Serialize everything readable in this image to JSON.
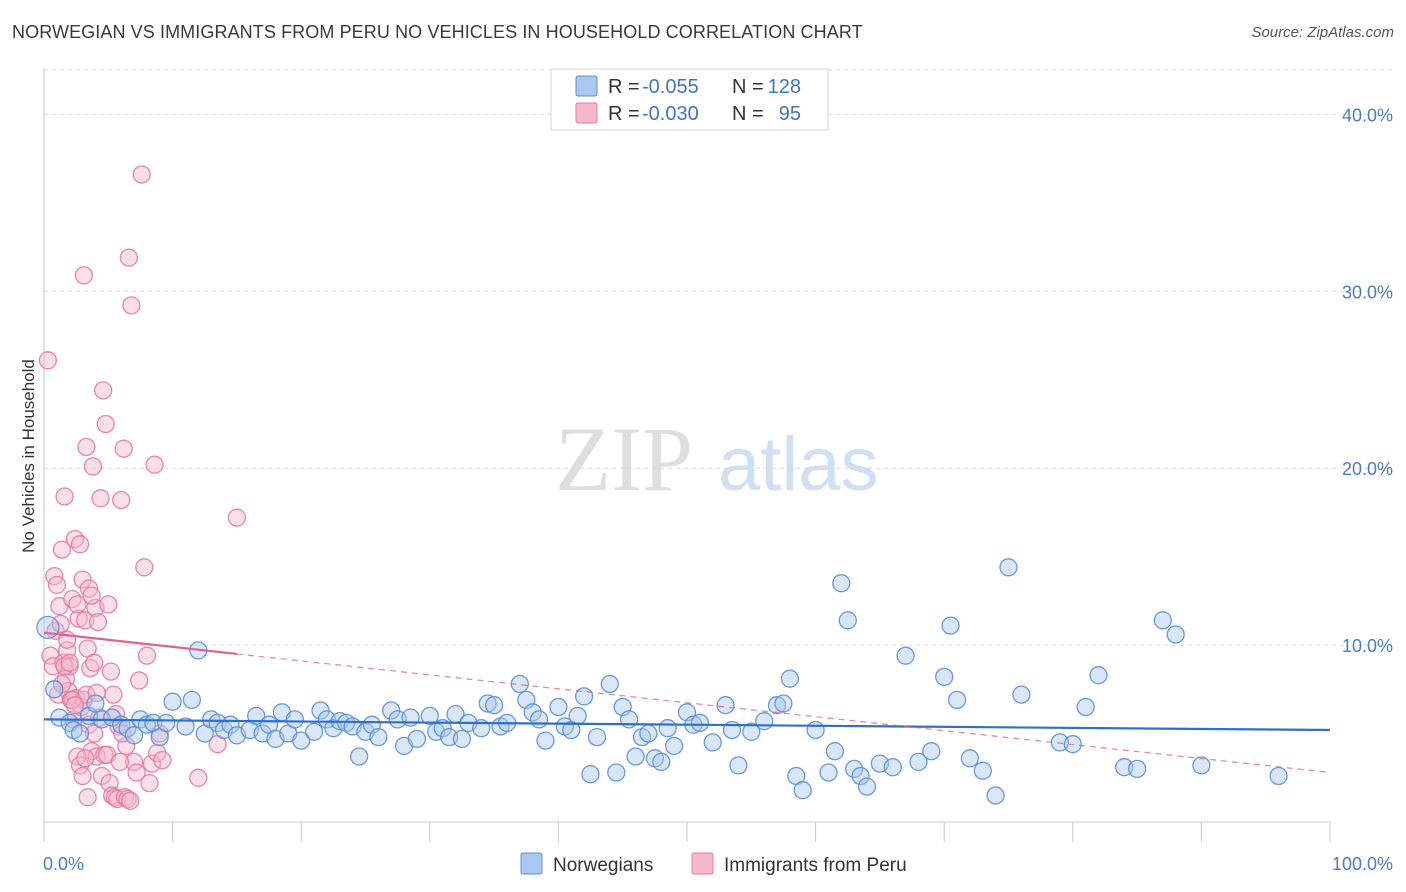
{
  "header": {
    "title": "NORWEGIAN VS IMMIGRANTS FROM PERU NO VEHICLES IN HOUSEHOLD CORRELATION CHART",
    "source": "Source: ZipAtlas.com"
  },
  "watermark": {
    "zip": "ZIP",
    "atlas": "atlas"
  },
  "colors": {
    "blue_fill": "#a9c8f0",
    "blue_stroke": "#5b8fd6",
    "blue_line": "#2f6fcf",
    "pink_fill": "#f5b8cc",
    "pink_stroke": "#e8799e",
    "pink_line": "#e0608e",
    "grid": "#d9d9d9",
    "axis_text": "#4a7cc4"
  },
  "legend_box": {
    "rows": [
      {
        "r_label": "R =",
        "r_value": "-0.055",
        "n_label": "N =",
        "n_value": "128"
      },
      {
        "r_label": "R =",
        "r_value": "-0.030",
        "n_label": "N =",
        "n_value": "95"
      }
    ]
  },
  "chart_data": {
    "type": "scatter",
    "title": "NORWEGIAN VS IMMIGRANTS FROM PERU NO VEHICLES IN HOUSEHOLD CORRELATION CHART",
    "xlabel": "",
    "ylabel": "No Vehicles in Household",
    "xlim": [
      0,
      100
    ],
    "ylim": [
      0,
      42
    ],
    "x_tick_labels": [
      "0.0%",
      "100.0%"
    ],
    "y_ticks": [
      10,
      20,
      30,
      40
    ],
    "y_tick_labels": [
      "10.0%",
      "20.0%",
      "30.0%",
      "40.0%"
    ],
    "grid": true,
    "legend_position": "bottom-center",
    "series": [
      {
        "name": "Norwegians",
        "R": -0.055,
        "N": 128,
        "trend": {
          "x": [
            0,
            100
          ],
          "y": [
            5.8,
            5.2
          ],
          "dashed_extension": false
        },
        "points": [
          [
            0.3,
            11.0
          ],
          [
            0.8,
            7.5
          ],
          [
            1.2,
            5.9
          ],
          [
            2.0,
            5.6
          ],
          [
            2.3,
            5.2
          ],
          [
            2.8,
            5.0
          ],
          [
            3.5,
            6.0
          ],
          [
            4.0,
            6.7
          ],
          [
            4.5,
            5.8
          ],
          [
            5.3,
            5.9
          ],
          [
            6.0,
            5.5
          ],
          [
            6.5,
            5.3
          ],
          [
            7.0,
            4.9
          ],
          [
            7.5,
            5.8
          ],
          [
            8.0,
            5.5
          ],
          [
            8.5,
            5.6
          ],
          [
            9.0,
            4.8
          ],
          [
            9.5,
            5.6
          ],
          [
            10.0,
            6.8
          ],
          [
            11.0,
            5.4
          ],
          [
            11.5,
            6.9
          ],
          [
            12.0,
            9.7
          ],
          [
            12.5,
            5.0
          ],
          [
            13.0,
            5.8
          ],
          [
            13.5,
            5.6
          ],
          [
            14.0,
            5.2
          ],
          [
            14.5,
            5.5
          ],
          [
            15.0,
            4.9
          ],
          [
            16.0,
            5.2
          ],
          [
            16.5,
            6.0
          ],
          [
            17.0,
            5.0
          ],
          [
            17.5,
            5.5
          ],
          [
            18.0,
            4.7
          ],
          [
            18.5,
            6.2
          ],
          [
            19.0,
            5.0
          ],
          [
            19.5,
            5.8
          ],
          [
            20.0,
            4.6
          ],
          [
            21.0,
            5.1
          ],
          [
            21.5,
            6.3
          ],
          [
            22.0,
            5.8
          ],
          [
            22.5,
            5.3
          ],
          [
            23.0,
            5.7
          ],
          [
            23.5,
            5.6
          ],
          [
            24.0,
            5.4
          ],
          [
            24.5,
            3.7
          ],
          [
            25.0,
            5.1
          ],
          [
            25.5,
            5.5
          ],
          [
            26.0,
            4.8
          ],
          [
            27.0,
            6.3
          ],
          [
            27.5,
            5.8
          ],
          [
            28.0,
            4.3
          ],
          [
            28.5,
            5.9
          ],
          [
            29.0,
            4.7
          ],
          [
            30.0,
            6.0
          ],
          [
            30.5,
            5.1
          ],
          [
            31.0,
            5.3
          ],
          [
            31.5,
            4.8
          ],
          [
            32.0,
            6.1
          ],
          [
            32.5,
            4.7
          ],
          [
            33.0,
            5.6
          ],
          [
            34.0,
            5.3
          ],
          [
            34.5,
            6.7
          ],
          [
            35.0,
            6.6
          ],
          [
            35.5,
            5.4
          ],
          [
            36.0,
            5.6
          ],
          [
            37.0,
            7.8
          ],
          [
            37.5,
            6.9
          ],
          [
            38.0,
            6.2
          ],
          [
            38.5,
            5.8
          ],
          [
            39.0,
            4.6
          ],
          [
            40.0,
            6.5
          ],
          [
            40.5,
            5.4
          ],
          [
            41.0,
            5.2
          ],
          [
            41.5,
            6.0
          ],
          [
            42.0,
            7.1
          ],
          [
            42.5,
            2.7
          ],
          [
            43.0,
            4.8
          ],
          [
            44.0,
            7.8
          ],
          [
            44.5,
            2.8
          ],
          [
            45.0,
            6.5
          ],
          [
            45.5,
            5.8
          ],
          [
            46.0,
            3.7
          ],
          [
            46.5,
            4.8
          ],
          [
            47.0,
            5.0
          ],
          [
            47.5,
            3.6
          ],
          [
            48.0,
            3.4
          ],
          [
            48.5,
            5.3
          ],
          [
            49.0,
            4.3
          ],
          [
            50.0,
            6.2
          ],
          [
            50.5,
            5.5
          ],
          [
            51.0,
            5.6
          ],
          [
            52.0,
            4.5
          ],
          [
            53.0,
            6.6
          ],
          [
            53.5,
            5.2
          ],
          [
            54.0,
            3.2
          ],
          [
            55.0,
            5.1
          ],
          [
            56.0,
            5.7
          ],
          [
            57.0,
            6.6
          ],
          [
            57.5,
            6.7
          ],
          [
            58.0,
            8.1
          ],
          [
            58.5,
            2.6
          ],
          [
            59.0,
            1.8
          ],
          [
            60.0,
            5.2
          ],
          [
            61.0,
            2.8
          ],
          [
            61.5,
            4.0
          ],
          [
            62.0,
            13.5
          ],
          [
            62.5,
            11.4
          ],
          [
            63.0,
            3.0
          ],
          [
            63.5,
            2.6
          ],
          [
            64.0,
            2.0
          ],
          [
            65.0,
            3.3
          ],
          [
            66.0,
            3.1
          ],
          [
            67.0,
            9.4
          ],
          [
            68.0,
            3.4
          ],
          [
            69.0,
            4.0
          ],
          [
            70.0,
            8.2
          ],
          [
            70.5,
            11.1
          ],
          [
            71.0,
            6.9
          ],
          [
            72.0,
            3.6
          ],
          [
            73.0,
            2.9
          ],
          [
            74.0,
            1.5
          ],
          [
            75.0,
            14.4
          ],
          [
            76.0,
            7.2
          ],
          [
            79.0,
            4.5
          ],
          [
            80.0,
            4.4
          ],
          [
            81.0,
            6.5
          ],
          [
            82.0,
            8.3
          ],
          [
            84.0,
            3.1
          ],
          [
            85.0,
            3.0
          ],
          [
            87.0,
            11.4
          ],
          [
            88.0,
            10.6
          ],
          [
            90.0,
            3.2
          ],
          [
            96.0,
            2.6
          ]
        ]
      },
      {
        "name": "Immigrants from Peru",
        "R": -0.03,
        "N": 95,
        "trend": {
          "x": [
            0,
            15
          ],
          "y": [
            10.7,
            9.5
          ],
          "dashed_extension": true,
          "dashed_to": [
            100,
            2.8
          ]
        },
        "points": [
          [
            0.3,
            26.1
          ],
          [
            0.5,
            9.4
          ],
          [
            0.7,
            8.8
          ],
          [
            0.9,
            10.8
          ],
          [
            1.1,
            7.2
          ],
          [
            1.3,
            11.2
          ],
          [
            1.5,
            9.0
          ],
          [
            1.7,
            8.1
          ],
          [
            1.9,
            7.4
          ],
          [
            2.1,
            6.9
          ],
          [
            2.3,
            5.8
          ],
          [
            2.5,
            7.0
          ],
          [
            2.7,
            11.5
          ],
          [
            2.9,
            6.5
          ],
          [
            3.1,
            6.9
          ],
          [
            3.3,
            7.2
          ],
          [
            3.5,
            5.5
          ],
          [
            3.7,
            4.0
          ],
          [
            3.9,
            5.0
          ],
          [
            4.1,
            3.7
          ],
          [
            0.8,
            13.9
          ],
          [
            1.0,
            13.4
          ],
          [
            1.2,
            12.2
          ],
          [
            1.4,
            15.4
          ],
          [
            1.6,
            18.4
          ],
          [
            1.8,
            9.7
          ],
          [
            2.0,
            8.8
          ],
          [
            2.2,
            12.6
          ],
          [
            2.4,
            16.0
          ],
          [
            2.6,
            12.3
          ],
          [
            2.8,
            15.7
          ],
          [
            3.0,
            13.7
          ],
          [
            3.2,
            11.4
          ],
          [
            3.4,
            9.8
          ],
          [
            3.6,
            8.7
          ],
          [
            3.8,
            20.1
          ],
          [
            4.0,
            12.1
          ],
          [
            4.2,
            11.3
          ],
          [
            4.4,
            18.3
          ],
          [
            4.6,
            24.4
          ],
          [
            4.8,
            22.5
          ],
          [
            5.0,
            12.3
          ],
          [
            5.2,
            8.5
          ],
          [
            5.4,
            7.2
          ],
          [
            5.6,
            6.1
          ],
          [
            5.8,
            5.4
          ],
          [
            6.0,
            18.2
          ],
          [
            6.2,
            21.1
          ],
          [
            6.4,
            4.3
          ],
          [
            6.6,
            31.9
          ],
          [
            6.8,
            29.2
          ],
          [
            7.0,
            3.4
          ],
          [
            7.2,
            2.8
          ],
          [
            7.4,
            8.0
          ],
          [
            7.6,
            36.6
          ],
          [
            7.8,
            14.4
          ],
          [
            8.0,
            9.4
          ],
          [
            8.2,
            2.2
          ],
          [
            8.4,
            3.3
          ],
          [
            8.6,
            20.2
          ],
          [
            8.8,
            3.9
          ],
          [
            9.0,
            5.0
          ],
          [
            9.2,
            3.5
          ],
          [
            3.1,
            30.9
          ],
          [
            3.3,
            21.2
          ],
          [
            3.5,
            13.2
          ],
          [
            3.7,
            12.8
          ],
          [
            3.9,
            9.0
          ],
          [
            4.1,
            7.3
          ],
          [
            4.3,
            5.9
          ],
          [
            4.5,
            2.6
          ],
          [
            4.7,
            3.8
          ],
          [
            4.9,
            3.8
          ],
          [
            5.1,
            2.2
          ],
          [
            5.3,
            1.5
          ],
          [
            5.5,
            1.4
          ],
          [
            5.7,
            1.3
          ],
          [
            5.9,
            3.4
          ],
          [
            6.1,
            5.0
          ],
          [
            6.3,
            1.4
          ],
          [
            6.5,
            1.3
          ],
          [
            6.7,
            1.2
          ],
          [
            1.4,
            7.8
          ],
          [
            1.6,
            8.8
          ],
          [
            1.8,
            10.3
          ],
          [
            2.0,
            9.0
          ],
          [
            2.2,
            6.9
          ],
          [
            2.4,
            6.6
          ],
          [
            2.6,
            3.7
          ],
          [
            2.8,
            3.2
          ],
          [
            3.0,
            2.6
          ],
          [
            3.2,
            3.6
          ],
          [
            3.4,
            1.4
          ],
          [
            12.0,
            2.5
          ],
          [
            13.5,
            4.4
          ],
          [
            15.0,
            17.2
          ]
        ]
      }
    ]
  },
  "bottom_legend": {
    "items": [
      {
        "label": "Norwegians"
      },
      {
        "label": "Immigrants from Peru"
      }
    ]
  }
}
